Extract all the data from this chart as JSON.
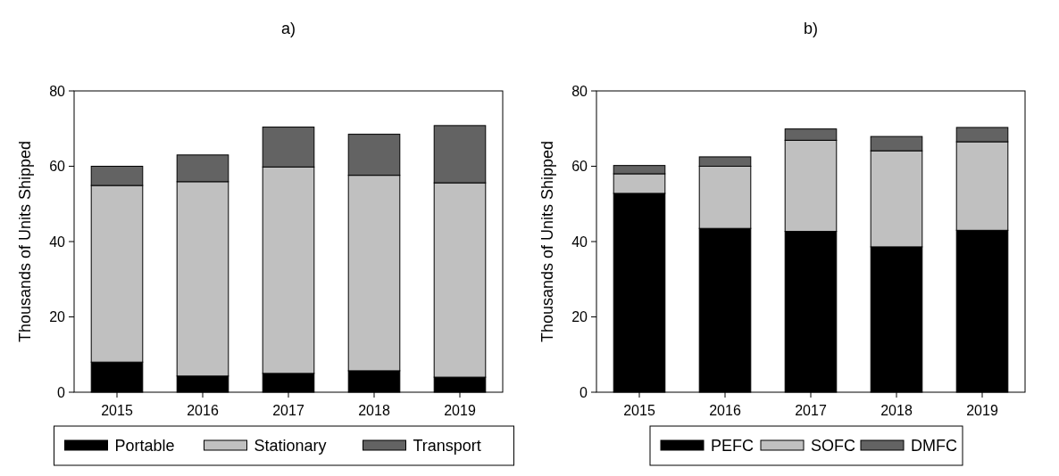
{
  "chart_data": [
    {
      "type": "bar",
      "title": "a)",
      "ylabel": "Thousands of Units Shipped",
      "categories": [
        "2015",
        "2016",
        "2017",
        "2018",
        "2019"
      ],
      "stacked": true,
      "ylim": [
        0,
        80
      ],
      "yticks": [
        0,
        20,
        40,
        60,
        80
      ],
      "legend": "bottom",
      "series": [
        {
          "name": "Portable",
          "color": "#000000",
          "values": [
            8.0,
            4.3,
            5.0,
            5.7,
            4.0
          ]
        },
        {
          "name": "Stationary",
          "color": "#c0c0c0",
          "values": [
            46.9,
            51.6,
            54.8,
            51.9,
            51.6
          ]
        },
        {
          "name": "Transport",
          "color": "#636363",
          "values": [
            5.1,
            7.1,
            10.6,
            10.9,
            15.2
          ]
        }
      ]
    },
    {
      "type": "bar",
      "title": "b)",
      "ylabel": "Thousands of Units Shipped",
      "categories": [
        "2015",
        "2016",
        "2017",
        "2018",
        "2019"
      ],
      "stacked": true,
      "ylim": [
        0,
        80
      ],
      "yticks": [
        0,
        20,
        40,
        60,
        80
      ],
      "legend": "bottom",
      "series": [
        {
          "name": "PEFC",
          "color": "#000000",
          "values": [
            52.8,
            43.5,
            42.7,
            38.6,
            43.0
          ]
        },
        {
          "name": "SOFC",
          "color": "#c0c0c0",
          "values": [
            5.2,
            16.5,
            24.2,
            25.5,
            23.5
          ]
        },
        {
          "name": "DMFC",
          "color": "#636363",
          "values": [
            2.2,
            2.5,
            3.0,
            3.8,
            3.8
          ]
        }
      ]
    }
  ]
}
